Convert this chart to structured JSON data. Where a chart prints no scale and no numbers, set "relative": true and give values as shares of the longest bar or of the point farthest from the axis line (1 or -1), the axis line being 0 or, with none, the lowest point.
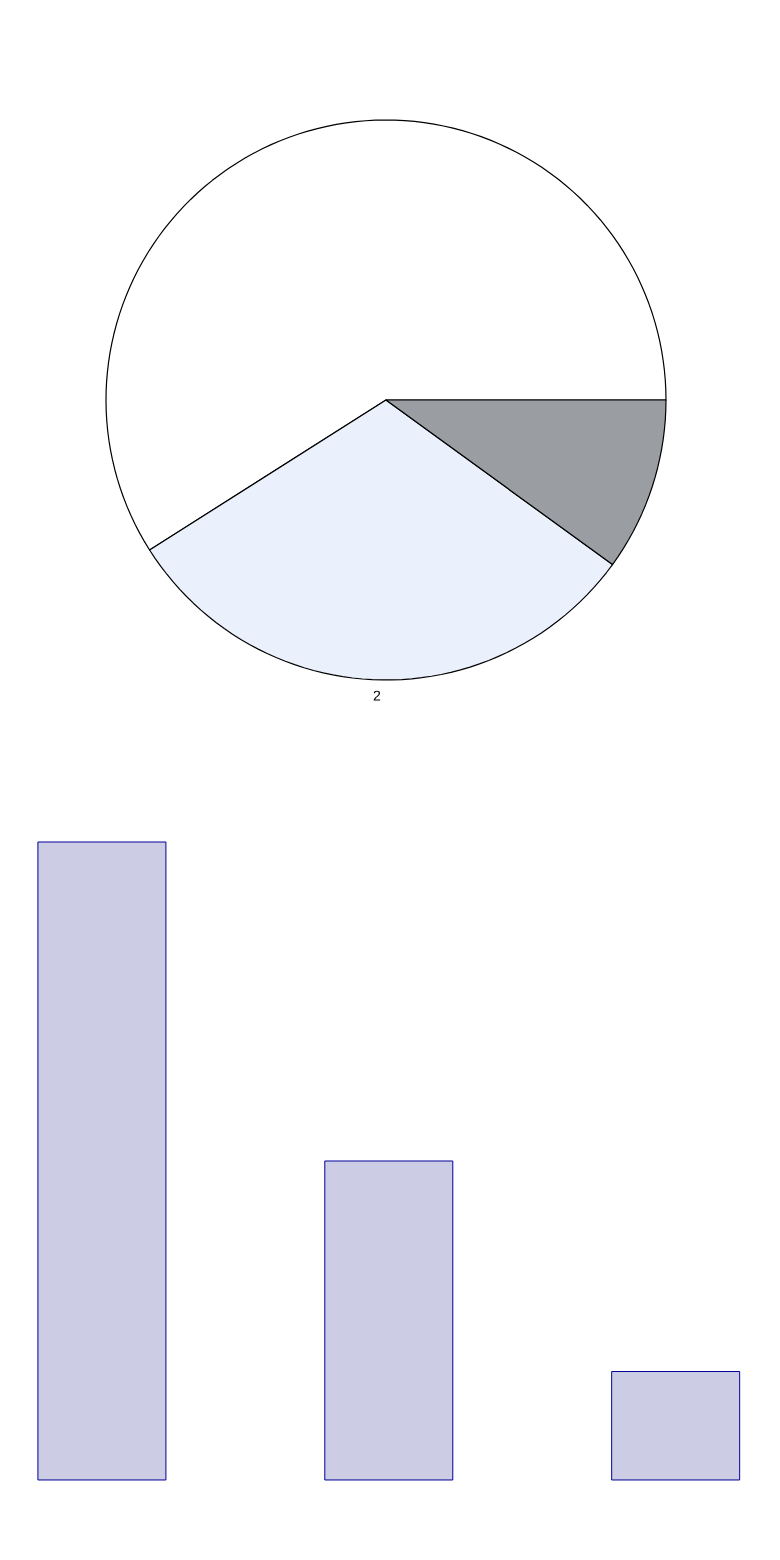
{
  "chart_data": [
    {
      "type": "pie",
      "categories": [
        null,
        "2",
        null
      ],
      "values": [
        59,
        31,
        10
      ],
      "colors": [
        "#ffffff",
        "#eaf0fc",
        "#9a9da2"
      ]
    },
    {
      "type": "bar",
      "categories": [
        null,
        null,
        null
      ],
      "values": [
        1,
        0.5,
        0.17
      ],
      "relative": true,
      "color": "#cccce4"
    }
  ]
}
